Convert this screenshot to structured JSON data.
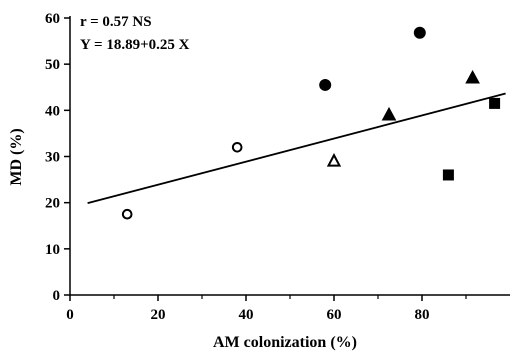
{
  "chart_data": {
    "type": "scatter",
    "title": "",
    "xlabel": "AM colonization (%)",
    "ylabel": "MD (%)",
    "xlim": [
      0,
      100
    ],
    "ylim": [
      0,
      60
    ],
    "x_ticks": [
      0,
      20,
      40,
      60,
      80
    ],
    "y_ticks": [
      0,
      10,
      20,
      30,
      40,
      50,
      60
    ],
    "annotations": [
      "r = 0.57 NS",
      "Y = 18.89+0.25 X"
    ],
    "grid": false,
    "series": [
      {
        "marker": "open-circle",
        "color": "#000000",
        "points": [
          {
            "x": 13,
            "y": 17.5
          },
          {
            "x": 38,
            "y": 32
          }
        ]
      },
      {
        "marker": "filled-circle",
        "color": "#000000",
        "points": [
          {
            "x": 58,
            "y": 45.5
          },
          {
            "x": 79.5,
            "y": 56.8
          }
        ]
      },
      {
        "marker": "open-triangle",
        "color": "#000000",
        "points": [
          {
            "x": 60,
            "y": 29
          }
        ]
      },
      {
        "marker": "filled-triangle",
        "color": "#000000",
        "points": [
          {
            "x": 72.5,
            "y": 39
          },
          {
            "x": 91.5,
            "y": 47
          }
        ]
      },
      {
        "marker": "filled-square",
        "color": "#000000",
        "points": [
          {
            "x": 86,
            "y": 26
          },
          {
            "x": 96.5,
            "y": 41.5
          }
        ]
      }
    ],
    "regression": {
      "intercept": 18.89,
      "slope": 0.25,
      "x_range": [
        0,
        100
      ],
      "color": "#000000"
    }
  }
}
